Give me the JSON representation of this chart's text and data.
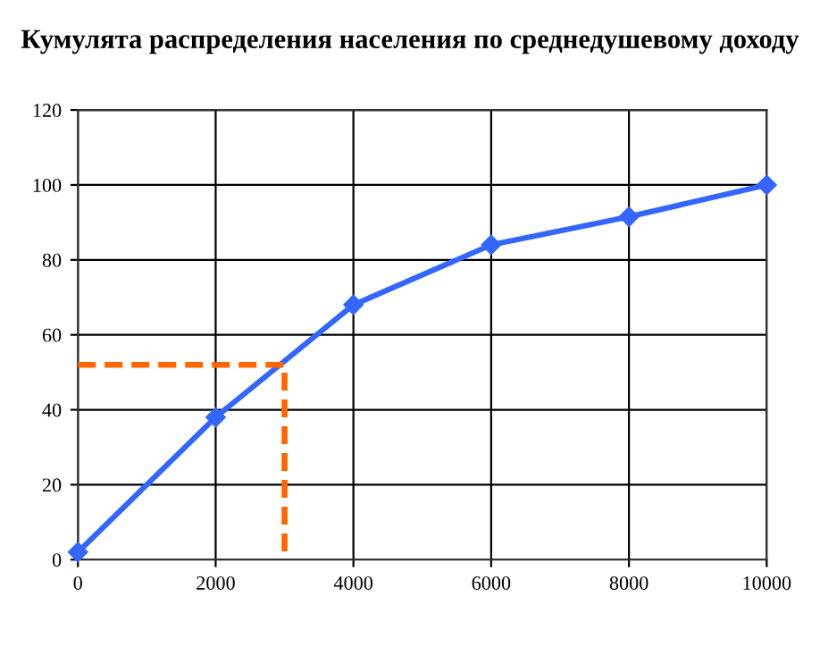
{
  "chart_data": {
    "type": "line",
    "title": "Кумулята распределения населения по среднедушевому доходу",
    "series": [
      {
        "color": "#3366ff",
        "x": [
          0,
          2000,
          4000,
          6000,
          8000,
          10000
        ],
        "values": [
          2,
          38,
          68,
          84,
          91.5,
          100
        ],
        "marker": "diamond",
        "line_style": "solid"
      },
      {
        "color": "#ff6600",
        "x": [
          0,
          3000,
          3000
        ],
        "values": [
          52,
          52,
          0
        ],
        "marker": "none",
        "line_style": "dashed"
      }
    ],
    "xlim": [
      0,
      10000
    ],
    "xticks": [
      0,
      2000,
      4000,
      6000,
      8000,
      10000
    ],
    "ylim": [
      0,
      120
    ],
    "yticks": [
      0,
      20,
      40,
      60,
      80,
      100,
      120
    ],
    "grid": true,
    "legend": false
  }
}
